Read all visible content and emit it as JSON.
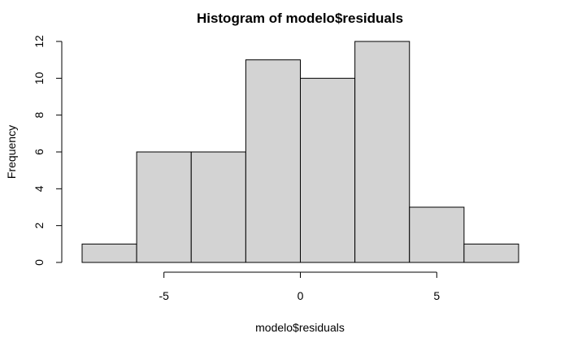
{
  "chart_data": {
    "type": "bar",
    "title": "Histogram of modelo$residuals",
    "xlabel": "modelo$residuals",
    "ylabel": "Frequency",
    "bins": [
      {
        "x0": -8,
        "x1": -6,
        "count": 1
      },
      {
        "x0": -6,
        "x1": -4,
        "count": 6
      },
      {
        "x0": -4,
        "x1": -2,
        "count": 6
      },
      {
        "x0": -2,
        "x1": 0,
        "count": 11
      },
      {
        "x0": 0,
        "x1": 2,
        "count": 10
      },
      {
        "x0": 2,
        "x1": 4,
        "count": 12
      },
      {
        "x0": 4,
        "x1": 6,
        "count": 3
      },
      {
        "x0": 6,
        "x1": 8,
        "count": 1
      }
    ],
    "x_ticks": [
      -5,
      0,
      5
    ],
    "x_tick_labels": [
      "-5",
      "0",
      "5"
    ],
    "y_ticks": [
      0,
      2,
      4,
      6,
      8,
      10,
      12
    ],
    "y_tick_labels": [
      "0",
      "2",
      "4",
      "6",
      "8",
      "10",
      "12"
    ],
    "xlim": [
      -8,
      8
    ],
    "ylim": [
      0,
      12
    ],
    "bar_color": "#d3d3d3",
    "grid": false,
    "legend": "none"
  }
}
